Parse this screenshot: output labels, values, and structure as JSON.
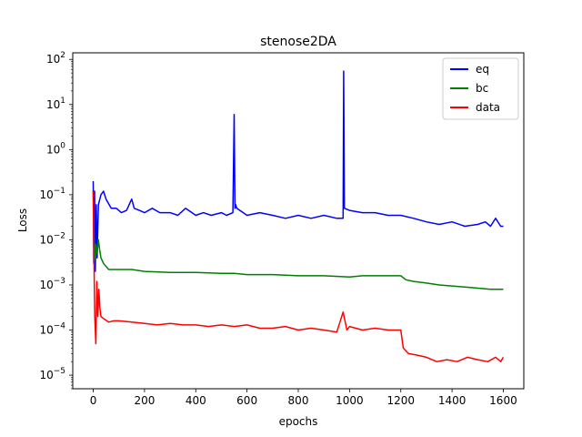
{
  "chart_data": {
    "type": "line",
    "title": "stenose2DA",
    "xlabel": "epochs",
    "ylabel": "Loss",
    "xlim": [
      -80,
      1680
    ],
    "ylim": [
      5e-06,
      140
    ],
    "yscale": "log",
    "grid": false,
    "legend_position": "top-right",
    "xticks": [
      0,
      200,
      400,
      600,
      800,
      1000,
      1200,
      1400,
      1600
    ],
    "xtick_labels": [
      "0",
      "200",
      "400",
      "600",
      "800",
      "1000",
      "1200",
      "1400",
      "1600"
    ],
    "yticks": [
      1e-05,
      0.0001,
      0.001,
      0.01,
      0.1,
      1,
      10,
      100
    ],
    "ytick_labels": [
      {
        "base": "10",
        "exp": "−5"
      },
      {
        "base": "10",
        "exp": "−4"
      },
      {
        "base": "10",
        "exp": "−3"
      },
      {
        "base": "10",
        "exp": "−2"
      },
      {
        "base": "10",
        "exp": "−1"
      },
      {
        "base": "10",
        "exp": "0"
      },
      {
        "base": "10",
        "exp": "1"
      },
      {
        "base": "10",
        "exp": "2"
      }
    ],
    "series": [
      {
        "name": "eq",
        "color": "#0000ff",
        "x": [
          0,
          2,
          5,
          8,
          12,
          15,
          20,
          30,
          40,
          50,
          70,
          90,
          110,
          130,
          150,
          160,
          180,
          200,
          230,
          260,
          300,
          330,
          360,
          400,
          430,
          460,
          500,
          520,
          545,
          550,
          553,
          556,
          560,
          600,
          650,
          700,
          750,
          800,
          850,
          900,
          950,
          975,
          977,
          980,
          1000,
          1050,
          1100,
          1150,
          1200,
          1250,
          1300,
          1350,
          1400,
          1450,
          1500,
          1530,
          1550,
          1570,
          1590,
          1600
        ],
        "y": [
          0.2,
          0.003,
          0.12,
          0.002,
          0.06,
          0.004,
          0.06,
          0.1,
          0.12,
          0.08,
          0.05,
          0.05,
          0.04,
          0.045,
          0.08,
          0.05,
          0.045,
          0.04,
          0.05,
          0.04,
          0.04,
          0.035,
          0.05,
          0.035,
          0.04,
          0.035,
          0.04,
          0.035,
          0.04,
          6,
          0.05,
          0.06,
          0.05,
          0.035,
          0.04,
          0.035,
          0.03,
          0.035,
          0.03,
          0.035,
          0.03,
          0.03,
          55,
          0.05,
          0.045,
          0.04,
          0.04,
          0.035,
          0.035,
          0.03,
          0.025,
          0.022,
          0.025,
          0.02,
          0.022,
          0.025,
          0.02,
          0.03,
          0.02,
          0.02
        ]
      },
      {
        "name": "bc",
        "color": "#008000",
        "x": [
          0,
          5,
          10,
          15,
          20,
          25,
          30,
          40,
          60,
          80,
          100,
          150,
          200,
          300,
          400,
          500,
          550,
          600,
          700,
          800,
          900,
          1000,
          1050,
          1100,
          1200,
          1220,
          1250,
          1300,
          1350,
          1400,
          1450,
          1500,
          1550,
          1600
        ],
        "y": [
          0.12,
          0.0035,
          0.008,
          0.005,
          0.01,
          0.006,
          0.004,
          0.003,
          0.0022,
          0.0022,
          0.0022,
          0.0022,
          0.002,
          0.0019,
          0.0019,
          0.0018,
          0.0018,
          0.0017,
          0.0017,
          0.0016,
          0.0016,
          0.0015,
          0.0016,
          0.0016,
          0.0016,
          0.0013,
          0.0012,
          0.0011,
          0.001,
          0.00095,
          0.0009,
          0.00085,
          0.0008,
          0.0008
        ]
      },
      {
        "name": "data",
        "color": "#ff0000",
        "x": [
          0,
          3,
          6,
          10,
          14,
          18,
          22,
          26,
          30,
          40,
          60,
          80,
          100,
          150,
          200,
          250,
          300,
          350,
          400,
          450,
          500,
          550,
          600,
          650,
          700,
          750,
          800,
          850,
          900,
          950,
          975,
          990,
          1000,
          1050,
          1100,
          1150,
          1200,
          1210,
          1230,
          1260,
          1300,
          1340,
          1380,
          1420,
          1460,
          1500,
          1540,
          1570,
          1590,
          1600
        ],
        "y": [
          0.12,
          0.003,
          0.0002,
          5e-05,
          0.0012,
          0.0002,
          0.0008,
          0.0003,
          0.0002,
          0.00018,
          0.00015,
          0.00016,
          0.00016,
          0.00015,
          0.00014,
          0.00013,
          0.00014,
          0.00013,
          0.00013,
          0.00012,
          0.00013,
          0.00012,
          0.00013,
          0.00011,
          0.00011,
          0.00012,
          0.0001,
          0.00011,
          0.0001,
          9e-05,
          0.00025,
          0.0001,
          0.00012,
          0.0001,
          0.00011,
          0.0001,
          0.0001,
          4e-05,
          3e-05,
          2.8e-05,
          2.5e-05,
          2e-05,
          2.2e-05,
          2e-05,
          2.5e-05,
          2.2e-05,
          2e-05,
          2.5e-05,
          2e-05,
          2.5e-05
        ]
      }
    ]
  }
}
